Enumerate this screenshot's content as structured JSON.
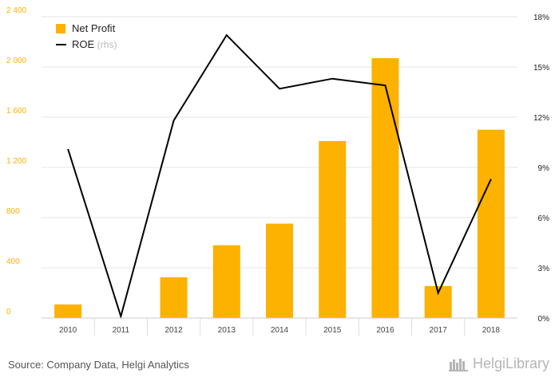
{
  "chart_data": {
    "type": "bar",
    "categories": [
      "2010",
      "2011",
      "2012",
      "2013",
      "2014",
      "2015",
      "2016",
      "2017",
      "2018"
    ],
    "series": [
      {
        "name": "Net Profit",
        "type": "bar",
        "axis": "left",
        "color": "#FDB100",
        "values": [
          108,
          0,
          325,
          580,
          752,
          1410,
          2070,
          255,
          1500
        ]
      },
      {
        "name": "ROE",
        "type": "line",
        "axis": "right",
        "color": "#000000",
        "values": [
          10.1,
          0.1,
          11.8,
          16.9,
          13.7,
          14.3,
          13.9,
          1.5,
          8.3
        ]
      }
    ],
    "legend": [
      {
        "label": "Net Profit",
        "suffix": ""
      },
      {
        "label": "ROE",
        "suffix": "(rhs)"
      }
    ],
    "y_left": {
      "ylim": [
        0,
        2400
      ],
      "ticks": [
        "0",
        "400",
        "800",
        "1 200",
        "1 600",
        "2 000",
        "2 400"
      ],
      "tick_color": "#FDB100"
    },
    "y_right": {
      "ylim": [
        0,
        18
      ],
      "ticks": [
        "0%",
        "3%",
        "6%",
        "9%",
        "12%",
        "15%",
        "18%"
      ]
    },
    "grid": true,
    "legend_position": "top-left"
  },
  "footer": {
    "source": "Source: Company Data, Helgi Analytics",
    "brand": "HelgiLibrary"
  }
}
